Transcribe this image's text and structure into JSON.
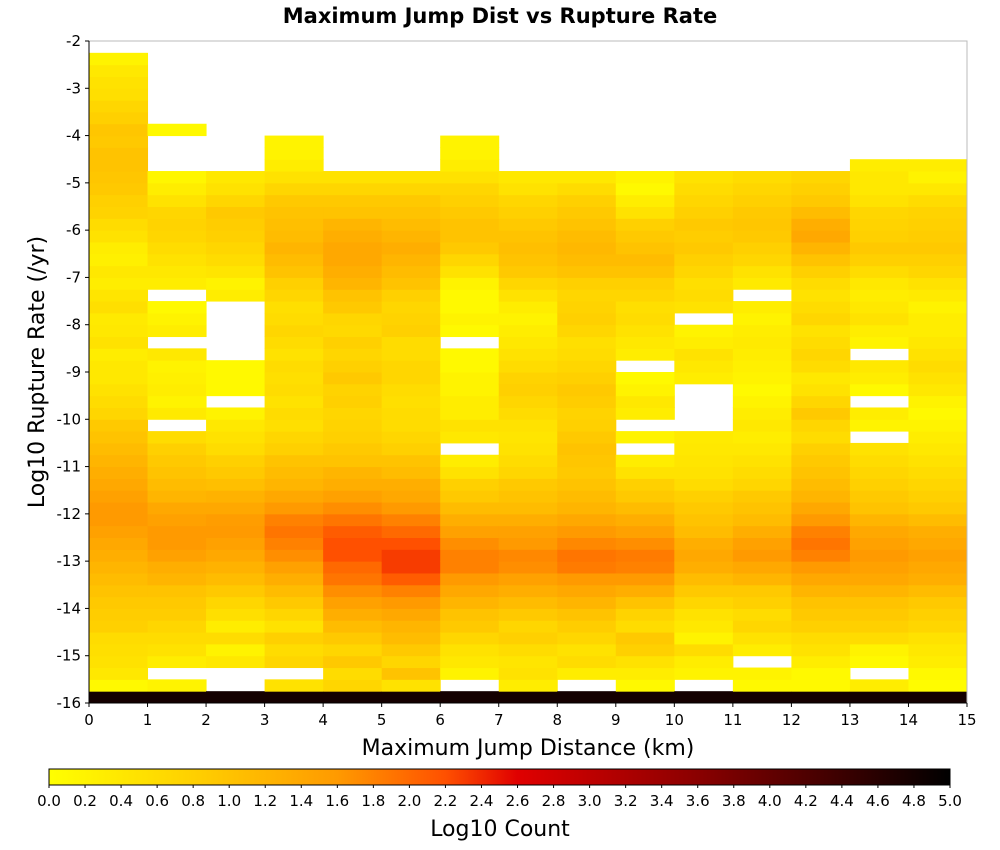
{
  "chart_data": {
    "type": "heatmap",
    "title": "Maximum Jump Dist vs Rupture Rate",
    "xlabel": "Maximum Jump Distance (km)",
    "ylabel": "Log10 Rupture Rate (/yr)",
    "xlim": [
      0,
      15
    ],
    "ylim": [
      -16,
      -2
    ],
    "x_ticks": [
      "0",
      "1",
      "2",
      "3",
      "4",
      "5",
      "6",
      "7",
      "8",
      "9",
      "10",
      "11",
      "12",
      "13",
      "14",
      "15"
    ],
    "y_ticks": [
      "-2",
      "-3",
      "-4",
      "-5",
      "-6",
      "-7",
      "-8",
      "-9",
      "-10",
      "-11",
      "-12",
      "-13",
      "-14",
      "-15",
      "-16"
    ],
    "x_bin_width": 1,
    "y_bin_height": 0.25,
    "y_bins_bottom_to_top_start": -16,
    "colorbar": {
      "label": "Log10 Count",
      "range": [
        0,
        5
      ],
      "ticks": [
        "0.0",
        "0.2",
        "0.4",
        "0.6",
        "0.8",
        "1.0",
        "1.2",
        "1.4",
        "1.6",
        "1.8",
        "2.0",
        "2.2",
        "2.4",
        "2.6",
        "2.8",
        "3.0",
        "3.2",
        "3.4",
        "3.6",
        "3.8",
        "4.0",
        "4.2",
        "4.4",
        "4.6",
        "4.8",
        "5.0"
      ],
      "colors": [
        "#ffff00",
        "#ffd000",
        "#ff9a00",
        "#ff5000",
        "#e00000",
        "#8a0000",
        "#000000"
      ]
    },
    "values_by_column_bottom_to_top": [
      [
        4.8,
        0.1,
        0.4,
        0.5,
        0.55,
        0.6,
        0.8,
        0.85,
        0.9,
        1.0,
        1.1,
        1.2,
        1.3,
        1.4,
        1.5,
        1.6,
        1.6,
        1.5,
        1.4,
        1.3,
        1.2,
        1.1,
        1.0,
        0.9,
        0.7,
        0.6,
        0.5,
        0.4,
        0.4,
        0.3,
        0.5,
        0.4,
        0.35,
        0.55,
        0.45,
        0.3,
        0.4,
        0.25,
        0.3,
        0.5,
        0.6,
        0.75,
        0.8,
        0.9,
        0.95,
        1.0,
        1.0,
        0.9,
        0.95,
        0.8,
        0.7,
        0.55,
        0.5,
        0.4,
        0.2
      ],
      [
        4.8,
        0.2,
        null,
        0.3,
        0.5,
        0.6,
        0.7,
        0.85,
        0.9,
        1.0,
        1.2,
        1.3,
        1.5,
        1.6,
        1.6,
        1.5,
        1.4,
        1.2,
        1.1,
        1.0,
        0.9,
        0.8,
        0.6,
        null,
        0.35,
        0.2,
        0.3,
        0.25,
        0.2,
        0.4,
        null,
        0.3,
        0.2,
        0.1,
        null,
        0.3,
        0.4,
        0.5,
        0.6,
        0.7,
        0.75,
        0.7,
        0.5,
        0.3,
        0.15,
        null,
        null,
        null,
        0.1,
        null,
        null,
        null,
        null,
        null,
        null
      ],
      [
        4.8,
        null,
        null,
        0.4,
        0.2,
        0.6,
        0.3,
        0.55,
        0.7,
        0.9,
        1.1,
        1.25,
        1.4,
        1.5,
        1.6,
        1.55,
        1.4,
        1.25,
        1.05,
        0.9,
        0.8,
        0.6,
        0.5,
        0.4,
        0.2,
        null,
        0.1,
        0.1,
        0.1,
        null,
        null,
        null,
        null,
        null,
        0.3,
        0.2,
        0.45,
        0.6,
        0.7,
        0.8,
        0.85,
        0.9,
        0.7,
        0.5,
        0.4,
        null,
        null,
        null,
        null,
        null,
        null,
        null,
        null,
        null,
        null
      ],
      [
        4.8,
        0.5,
        null,
        0.7,
        0.6,
        0.8,
        0.5,
        0.7,
        0.9,
        1.1,
        1.3,
        1.5,
        1.7,
        1.8,
        1.9,
        1.8,
        1.6,
        1.4,
        1.2,
        1.1,
        1.0,
        0.8,
        0.7,
        0.55,
        0.6,
        0.5,
        0.6,
        0.55,
        0.6,
        0.5,
        0.6,
        0.7,
        0.6,
        0.55,
        0.7,
        0.8,
        1.0,
        1.1,
        1.2,
        1.1,
        1.05,
        1.0,
        0.9,
        0.7,
        0.5,
        0.3,
        0.2,
        0.2,
        null,
        null,
        null,
        null,
        null,
        null,
        null
      ],
      [
        4.8,
        0.7,
        0.6,
        0.9,
        0.7,
        0.9,
        1.1,
        1.3,
        1.5,
        1.7,
        1.9,
        2.0,
        2.2,
        2.2,
        2.1,
        1.9,
        1.7,
        1.5,
        1.3,
        1.2,
        1.0,
        0.9,
        0.8,
        0.75,
        0.7,
        0.8,
        0.75,
        0.9,
        0.8,
        0.7,
        0.8,
        0.65,
        0.7,
        0.9,
        1.0,
        1.2,
        1.3,
        1.4,
        1.4,
        1.3,
        1.2,
        1.0,
        0.9,
        0.7,
        0.5,
        null,
        null,
        null,
        null,
        null,
        null,
        null,
        null,
        null,
        null
      ],
      [
        4.8,
        0.5,
        1.0,
        0.7,
        0.9,
        1.1,
        1.2,
        1.4,
        1.6,
        1.8,
        2.1,
        2.3,
        2.3,
        2.2,
        2.0,
        1.8,
        1.6,
        1.4,
        1.3,
        1.1,
        1.0,
        0.8,
        0.7,
        0.6,
        0.6,
        0.55,
        0.6,
        0.7,
        0.7,
        0.6,
        0.6,
        0.8,
        0.75,
        0.7,
        0.8,
        1.0,
        1.1,
        1.2,
        1.3,
        1.2,
        1.1,
        1.0,
        0.9,
        0.7,
        0.5,
        null,
        null,
        null,
        null,
        null,
        null,
        null,
        null,
        null,
        null
      ],
      [
        4.8,
        null,
        0.2,
        0.4,
        0.5,
        0.7,
        0.9,
        1.0,
        1.2,
        1.4,
        1.6,
        1.8,
        1.8,
        1.7,
        1.5,
        1.3,
        1.1,
        0.9,
        0.8,
        0.5,
        0.3,
        null,
        0.4,
        0.5,
        0.3,
        0.3,
        0.2,
        0.2,
        0.1,
        0.1,
        null,
        0.1,
        0.2,
        0.1,
        0.1,
        0.2,
        0.5,
        0.7,
        0.9,
        1.0,
        1.0,
        0.9,
        0.8,
        0.7,
        0.5,
        0.3,
        0.2,
        0.2,
        null,
        null,
        null,
        null,
        null,
        null,
        null
      ],
      [
        4.8,
        0.3,
        0.5,
        0.45,
        0.6,
        0.8,
        0.7,
        0.9,
        1.1,
        1.3,
        1.5,
        1.7,
        1.75,
        1.6,
        1.5,
        1.3,
        1.1,
        1.0,
        0.9,
        0.7,
        0.6,
        0.5,
        0.45,
        0.5,
        0.6,
        0.7,
        0.8,
        0.75,
        0.6,
        0.5,
        0.4,
        0.3,
        0.2,
        0.3,
        0.5,
        0.7,
        0.9,
        1.0,
        1.05,
        1.0,
        0.9,
        0.8,
        0.7,
        0.5,
        0.4,
        null,
        null,
        null,
        null,
        null,
        null,
        null,
        null,
        null,
        null
      ],
      [
        4.8,
        null,
        0.3,
        0.6,
        0.5,
        0.7,
        0.85,
        1.0,
        1.2,
        1.4,
        1.6,
        1.85,
        1.9,
        1.75,
        1.6,
        1.4,
        1.2,
        1.1,
        1.0,
        0.9,
        0.95,
        1.0,
        0.9,
        0.8,
        0.75,
        0.85,
        0.9,
        0.8,
        0.7,
        0.6,
        0.55,
        0.7,
        0.8,
        0.75,
        0.7,
        0.8,
        1.0,
        1.1,
        1.15,
        1.1,
        1.0,
        0.9,
        0.8,
        0.6,
        0.4,
        null,
        null,
        null,
        null,
        null,
        null,
        null,
        null,
        null,
        null
      ],
      [
        4.8,
        0.1,
        0.3,
        0.5,
        0.8,
        0.9,
        0.6,
        0.75,
        1.0,
        1.3,
        1.6,
        1.8,
        1.85,
        1.7,
        1.5,
        1.3,
        1.1,
        0.9,
        0.8,
        0.5,
        0.3,
        null,
        0.2,
        null,
        0.3,
        0.4,
        0.2,
        0.1,
        null,
        0.3,
        0.4,
        0.5,
        0.6,
        0.55,
        0.7,
        0.8,
        1.0,
        1.1,
        1.0,
        0.9,
        0.8,
        0.5,
        0.3,
        0.1,
        0.2,
        null,
        null,
        null,
        null,
        null,
        null,
        null,
        null,
        null,
        null
      ],
      [
        4.8,
        null,
        0.2,
        0.3,
        0.6,
        0.2,
        0.4,
        0.5,
        0.7,
        0.9,
        1.1,
        1.3,
        1.4,
        1.3,
        1.1,
        1.0,
        0.9,
        0.8,
        0.6,
        0.5,
        0.45,
        0.4,
        0.35,
        null,
        null,
        null,
        null,
        0.3,
        0.4,
        0.5,
        0.3,
        0.2,
        null,
        0.5,
        0.6,
        0.55,
        0.7,
        0.8,
        0.9,
        0.85,
        0.9,
        0.8,
        0.7,
        0.6,
        0.5,
        null,
        null,
        null,
        null,
        null,
        null,
        null,
        null,
        null,
        null
      ],
      [
        4.8,
        0.1,
        0.2,
        null,
        0.3,
        0.5,
        0.7,
        0.6,
        0.8,
        0.9,
        1.2,
        1.4,
        1.6,
        1.5,
        1.3,
        1.1,
        1.0,
        0.9,
        0.7,
        0.6,
        0.5,
        0.4,
        0.3,
        0.4,
        0.3,
        0.2,
        0.1,
        0.2,
        0.25,
        0.3,
        0.35,
        0.3,
        0.2,
        0.3,
        null,
        0.35,
        0.5,
        0.7,
        0.8,
        0.9,
        0.95,
        0.9,
        0.8,
        0.7,
        0.6,
        null,
        null,
        null,
        null,
        null,
        null,
        null,
        null,
        null,
        null
      ],
      [
        4.8,
        0.1,
        0.1,
        0.3,
        0.5,
        0.6,
        0.8,
        0.9,
        1.0,
        1.2,
        1.4,
        1.6,
        1.8,
        1.9,
        1.8,
        1.6,
        1.4,
        1.2,
        1.1,
        1.0,
        0.9,
        0.8,
        0.6,
        0.7,
        0.9,
        0.7,
        0.5,
        0.4,
        0.6,
        0.7,
        0.6,
        0.5,
        0.7,
        0.6,
        0.5,
        0.6,
        0.8,
        1.0,
        1.2,
        1.4,
        1.3,
        1.1,
        0.9,
        0.8,
        0.7,
        null,
        null,
        null,
        null,
        null,
        null,
        null,
        null,
        null,
        null
      ],
      [
        4.8,
        0.3,
        null,
        0.1,
        0.2,
        0.6,
        0.8,
        0.9,
        1.0,
        1.2,
        1.4,
        1.5,
        1.6,
        1.5,
        1.4,
        1.2,
        1.0,
        0.9,
        0.8,
        0.7,
        0.6,
        0.5,
        null,
        0.2,
        0.3,
        null,
        0.1,
        0.3,
        0.4,
        null,
        0.2,
        0.3,
        0.5,
        0.4,
        0.3,
        0.4,
        0.6,
        0.8,
        0.9,
        0.8,
        0.75,
        0.7,
        0.5,
        0.4,
        0.4,
        0.3,
        null,
        null,
        null,
        null,
        null,
        null,
        null,
        null,
        null
      ],
      [
        4.8,
        0.05,
        0.1,
        0.3,
        0.4,
        0.5,
        0.7,
        0.8,
        0.9,
        1.1,
        1.3,
        1.4,
        1.5,
        1.4,
        1.3,
        1.1,
        0.9,
        0.8,
        0.7,
        0.6,
        0.5,
        0.4,
        0.3,
        0.2,
        0.1,
        0.2,
        0.4,
        0.5,
        0.6,
        0.5,
        0.4,
        0.3,
        0.3,
        0.2,
        0.35,
        0.5,
        0.7,
        0.8,
        0.9,
        0.85,
        0.8,
        0.75,
        0.6,
        0.4,
        0.2,
        0.3,
        null,
        null,
        null,
        null,
        null,
        null,
        null,
        null,
        null
      ]
    ]
  }
}
